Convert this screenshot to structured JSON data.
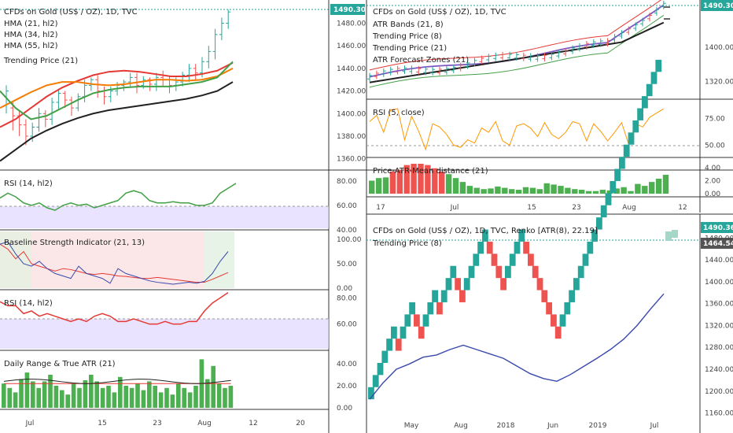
{
  "colors": {
    "up": "#26a69a",
    "down": "#ef5350",
    "green_bar": "#4caf50",
    "hma21": "#e53935",
    "hma34": "#f57c00",
    "hma55": "#43a047",
    "trending": "#212121",
    "rsi_line": "#43a047",
    "rsi2_line": "#e53935",
    "band": "#e0d7ff",
    "blue": "#3949ab",
    "orange": "#ff9800",
    "purple": "#7e57c2",
    "pink": "#f8bbd0",
    "price_badge": "#26a69a"
  },
  "left": {
    "title": "CFDs on Gold (US$ / OZ), 1D, TVC",
    "legend": [
      "HMA (21, hl2)",
      "HMA (34, hl2)",
      "HMA (55, hl2)",
      "Trending Price (21)"
    ],
    "price_badge": "1490.30",
    "price_ticks": [
      "1480.00",
      "1460.00",
      "1440.00",
      "1420.00",
      "1400.00",
      "1380.00",
      "1360.00"
    ],
    "rsi_label": "RSI (14, hl2)",
    "rsi_ticks": [
      "80.00",
      "60.00",
      "40.00"
    ],
    "bsi_label": "Baseline Strength Indicator (21, 13)",
    "bsi_ticks": [
      "100.00",
      "50.00",
      "0.00"
    ],
    "rsi2_label": "RSI (14, hl2)",
    "rsi2_ticks": [
      "80.00",
      "60.00"
    ],
    "atr_label": "Daily Range & True ATR (21)",
    "atr_ticks": [
      "40.00",
      "20.00",
      "0.00"
    ],
    "x_ticks": [
      "Jul",
      "15",
      "23",
      "Aug",
      "12",
      "20"
    ]
  },
  "right_top": {
    "title": "CFDs on Gold (US$ / OZ), 1D, TVC",
    "legend": [
      "ATR Bands (21, 8)",
      "Trending Price (8)",
      "Trending Price (21)",
      "ATR Forecast Zones (21)"
    ],
    "price_badge": "1490.30",
    "price_ticks": [
      "1400.00",
      "1320.00"
    ],
    "rsi_label": "RSI (5, close)",
    "rsi_ticks": [
      "75.00",
      "50.00"
    ],
    "dist_label": "Price-ATR-Mean distance (21)",
    "dist_ticks": [
      "4.00",
      "2.00",
      "0.00"
    ],
    "x_ticks": [
      "17",
      "Jul",
      "15",
      "23",
      "Aug",
      "12"
    ]
  },
  "right_bottom": {
    "title": "CFDs on Gold (US$ / OZ), 1D, TVC, Renko [ATR(8), 22.19]",
    "legend": [
      "Trending Price (8)"
    ],
    "price_badge": "1490.36",
    "price_badge2": "1464.54",
    "price_ticks": [
      "1480.00",
      "1440.00",
      "1400.00",
      "1360.00",
      "1320.00",
      "1280.00",
      "1240.00",
      "1200.00",
      "1160.00"
    ],
    "x_ticks": [
      "May",
      "Aug",
      "2018",
      "Jun",
      "2019",
      "Jul"
    ]
  },
  "chart_data": [
    {
      "type": "line",
      "title": "CFDs on Gold (US$ / OZ), 1D, TVC",
      "ylim": [
        1350,
        1495
      ],
      "series": [
        {
          "name": "HMA (21, hl2)",
          "values": [
            1388,
            1395,
            1405,
            1415,
            1423,
            1429,
            1434,
            1437,
            1438,
            1437,
            1435,
            1433,
            1433,
            1435,
            1438,
            1445
          ]
        },
        {
          "name": "HMA (34, hl2)",
          "values": [
            1405,
            1412,
            1419,
            1425,
            1428,
            1428,
            1426,
            1425,
            1426,
            1428,
            1430,
            1430,
            1429,
            1430,
            1433,
            1440
          ]
        },
        {
          "name": "HMA (55, hl2)",
          "values": [
            1420,
            1405,
            1395,
            1398,
            1405,
            1412,
            1418,
            1421,
            1423,
            1424,
            1424,
            1424,
            1426,
            1428,
            1432,
            1446
          ]
        },
        {
          "name": "Trending Price (21)",
          "values": [
            1358,
            1368,
            1378,
            1385,
            1391,
            1396,
            1400,
            1403,
            1405,
            1407,
            1409,
            1411,
            1413,
            1416,
            1420,
            1428
          ]
        }
      ]
    },
    {
      "type": "line",
      "title": "RSI (5, close)",
      "ylim": [
        40,
        90
      ],
      "series": [
        {
          "name": "RSI (5, close)",
          "values": [
            72,
            78,
            62,
            83,
            84,
            55,
            77,
            63,
            46,
            70,
            67,
            60,
            50,
            48,
            55,
            52,
            66,
            62,
            72,
            54,
            50,
            68,
            70,
            66,
            58,
            71,
            60,
            56,
            62,
            72,
            70,
            54,
            70,
            63,
            54,
            62,
            71,
            51,
            70,
            67,
            76,
            80,
            84
          ]
        }
      ]
    },
    {
      "type": "bar",
      "title": "Price-ATR-Mean distance (21)",
      "ylim": [
        0,
        5
      ],
      "values": [
        2.0,
        2.4,
        2.5,
        3.4,
        3.7,
        4.4,
        4.6,
        4.6,
        4.4,
        3.9,
        3.4,
        3.0,
        2.4,
        1.8,
        1.2,
        0.9,
        0.7,
        0.8,
        1.1,
        0.9,
        0.7,
        0.6,
        1.0,
        0.9,
        0.7,
        1.6,
        1.4,
        1.2,
        0.9,
        0.7,
        0.6,
        0.4,
        0.4,
        0.6,
        0.5,
        0.8,
        1.0,
        0.4,
        1.5,
        1.2,
        1.8,
        2.3,
        2.9
      ]
    },
    {
      "type": "line",
      "title": "CFDs on Gold (US$ / OZ), 1D, TVC, Renko [ATR(8), 22.19]",
      "ylim": [
        1155,
        1495
      ],
      "series": [
        {
          "name": "Trending Price (8)",
          "values": [
            1185,
            1215,
            1240,
            1250,
            1262,
            1266,
            1276,
            1284,
            1276,
            1268,
            1260,
            1246,
            1232,
            1223,
            1218,
            1230,
            1245,
            1260,
            1276,
            1295,
            1320,
            1350,
            1378
          ]
        }
      ]
    }
  ]
}
